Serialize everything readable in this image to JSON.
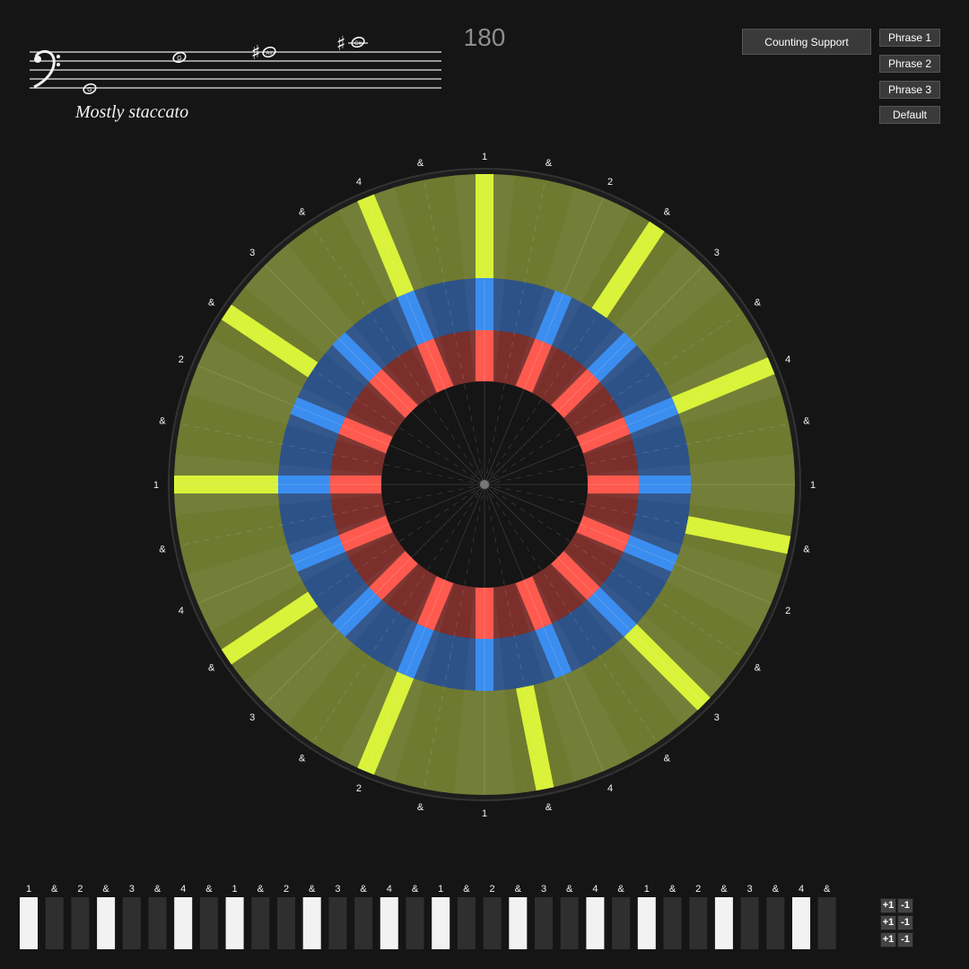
{
  "tempo": "180",
  "expression": "Mostly staccato",
  "staff": {
    "clef": "bass-clef",
    "notes": [
      {
        "name": "G",
        "accidental": ""
      },
      {
        "name": "G",
        "accidental": ""
      },
      {
        "name": "A#",
        "accidental": "♯"
      },
      {
        "name": "C#",
        "accidental": "♯"
      }
    ]
  },
  "controls": {
    "counting_support": "Counting Support",
    "phrases": [
      "Phrase 1",
      "Phrase 2",
      "Phrase 3",
      "Default"
    ]
  },
  "wheel": {
    "labels": [
      "1",
      "&",
      "2",
      "&",
      "3",
      "&",
      "4",
      "&",
      "1",
      "&",
      "2",
      "&",
      "3",
      "&",
      "4",
      "&",
      "1",
      "&",
      "2",
      "&",
      "3",
      "&",
      "4",
      "&",
      "1",
      "&",
      "2",
      "&",
      "3",
      "&",
      "4",
      "&"
    ],
    "rings": [
      {
        "name": "outer",
        "color": "#d9f23a",
        "active_positions": [
          0,
          3,
          6,
          9,
          12,
          15,
          18,
          21,
          24,
          27,
          30
        ]
      },
      {
        "name": "middle",
        "color": "#3b8ef0",
        "active_positions": [
          0,
          2,
          4,
          6,
          8,
          10,
          12,
          14,
          16,
          18,
          20,
          22,
          24,
          26,
          28,
          30
        ]
      },
      {
        "name": "inner",
        "color": "#ff5a4f",
        "active_positions": [
          0,
          2,
          4,
          6,
          8,
          10,
          12,
          14,
          16,
          18,
          20,
          22,
          24,
          26,
          28,
          30
        ]
      }
    ],
    "colors": {
      "outer_bg": "#6e7a30",
      "middle_bg": "#2d5288",
      "inner_bg": "#7a2f2b",
      "center": "#151515"
    }
  },
  "beat_strip": {
    "labels": [
      "1",
      "&",
      "2",
      "&",
      "3",
      "&",
      "4",
      "&",
      "1",
      "&",
      "2",
      "&",
      "3",
      "&",
      "4",
      "&",
      "1",
      "&",
      "2",
      "&",
      "3",
      "&",
      "4",
      "&",
      "1",
      "&",
      "2",
      "&",
      "3",
      "&",
      "4",
      "&"
    ],
    "active": [
      1,
      0,
      0,
      1,
      0,
      0,
      1,
      0,
      1,
      0,
      0,
      1,
      0,
      0,
      1,
      0,
      1,
      0,
      0,
      1,
      0,
      0,
      1,
      0,
      1,
      0,
      0,
      1,
      0,
      0,
      1,
      0
    ],
    "colors": {
      "on": "#f2f2f2",
      "off": "#2f2f2f"
    }
  },
  "adjusters": [
    {
      "plus": "+1",
      "minus": "-1"
    },
    {
      "plus": "+1",
      "minus": "-1"
    },
    {
      "plus": "+1",
      "minus": "-1"
    }
  ]
}
